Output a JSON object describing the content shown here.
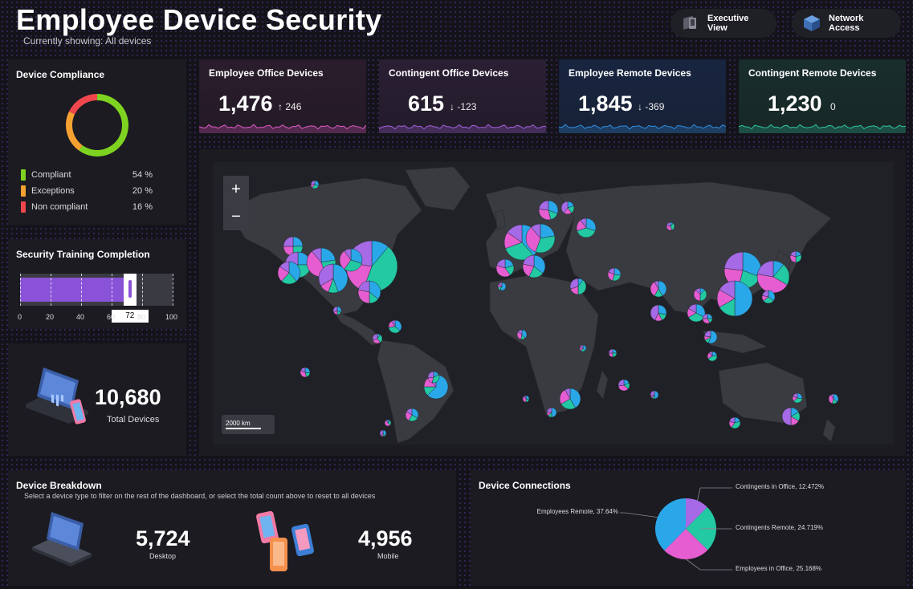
{
  "header": {
    "title": "Employee Device Security",
    "subtitle": "Currently showing: All devices",
    "buttons": [
      {
        "label": "Executive View",
        "icon": "device-stack-icon"
      },
      {
        "label": "Network Access",
        "icon": "network-cube-icon"
      }
    ]
  },
  "compliance": {
    "title": "Device Compliance",
    "items": [
      {
        "label": "Compliant",
        "pct": "54 %",
        "color": "#7ed321",
        "value": 54
      },
      {
        "label": "Exceptions",
        "pct": "20 %",
        "color": "#f5a131",
        "value": 20
      },
      {
        "label": "Non compliant",
        "pct": "16 %",
        "color": "#f0474d",
        "value": 16
      }
    ]
  },
  "training": {
    "title": "Security Training Completion",
    "value": 72,
    "value_label": "72",
    "ticks": [
      "0",
      "20",
      "40",
      "60",
      "80",
      "100"
    ]
  },
  "total": {
    "value": "10,680",
    "label": "Total Devices"
  },
  "kpis": [
    {
      "title": "Employee Office Devices",
      "value": "1,476",
      "arrow": "↑",
      "delta": "246",
      "color": "#e15ac7"
    },
    {
      "title": "Contingent Office Devices",
      "value": "615",
      "arrow": "↓",
      "delta": "-123",
      "color": "#a65fe0"
    },
    {
      "title": "Employee Remote Devices",
      "value": "1,845",
      "arrow": "↓",
      "delta": "-369",
      "color": "#2f8fe3"
    },
    {
      "title": "Contingent Remote Devices",
      "value": "1,230",
      "arrow": "",
      "delta": "0",
      "color": "#2fc5a0"
    }
  ],
  "map": {
    "zoom_in": "+",
    "zoom_out": "−",
    "scale_label": "2000 km",
    "pie_colors": [
      "#2aa7e8",
      "#22c9a3",
      "#e55dd1",
      "#a66ae6"
    ]
  },
  "breakdown": {
    "title": "Device Breakdown",
    "subtitle": "Select a device type to filter on the rest of the dashboard, or select the total count above to reset to all devices",
    "items": [
      {
        "value": "5,724",
        "label": "Desktop",
        "icon": "laptop-icon"
      },
      {
        "value": "4,956",
        "label": "Mobile",
        "icon": "phones-icon"
      }
    ]
  },
  "connections": {
    "title": "Device Connections",
    "slices": [
      {
        "label": "Contingents in Office, 12.472%",
        "value": 12.472,
        "color": "#a66ae6"
      },
      {
        "label": "Contingents Remote, 24.719%",
        "value": 24.719,
        "color": "#22c9a3"
      },
      {
        "label": "Employees in Office, 25.168%",
        "value": 25.168,
        "color": "#e55dd1"
      },
      {
        "label": "Employees Remote, 37.64%",
        "value": 37.64,
        "color": "#2aa7e8"
      }
    ]
  }
}
